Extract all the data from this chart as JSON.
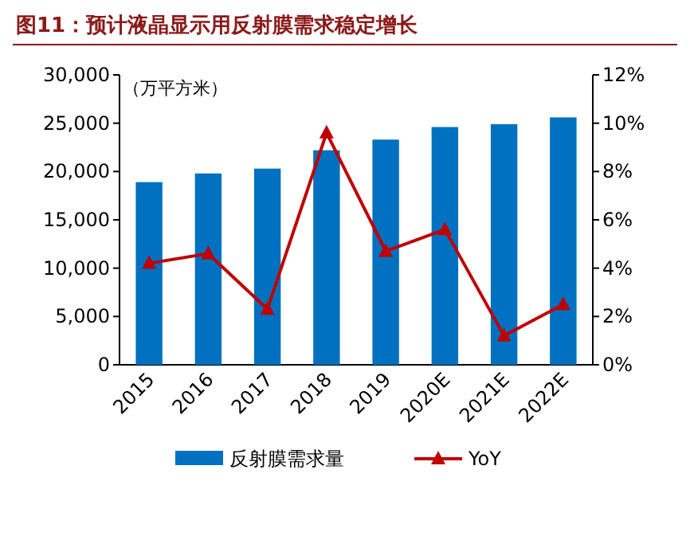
{
  "chart_data": {
    "type": "bar",
    "title": "图11：预计液晶显示用反射膜需求稳定增长",
    "ylabel": "（万平方米）",
    "categories": [
      "2015",
      "2016",
      "2017",
      "2018",
      "2019",
      "2020E",
      "2021E",
      "2022E"
    ],
    "series": [
      {
        "name": "反射膜需求量",
        "color": "#0070c0",
        "values": [
          18900,
          19800,
          20300,
          22200,
          23300,
          24600,
          24900,
          25600
        ]
      },
      {
        "name": "YoY",
        "type": "line",
        "axis": "y2",
        "color": "#c00000",
        "marker": "triangle",
        "values": [
          4.2,
          4.6,
          2.3,
          9.6,
          4.7,
          5.6,
          1.2,
          2.5
        ]
      }
    ],
    "ylim": [
      0,
      30000
    ],
    "yticks": [
      {
        "value": 0,
        "label": "0"
      },
      {
        "value": 5000,
        "label": "5,000"
      },
      {
        "value": 10000,
        "label": "10,000"
      },
      {
        "value": 15000,
        "label": "15,000"
      },
      {
        "value": 20000,
        "label": "20,000"
      },
      {
        "value": 25000,
        "label": "25,000"
      },
      {
        "value": 30000,
        "label": "30,000"
      }
    ],
    "y2lim": [
      0,
      12
    ],
    "y2ticks": [
      {
        "value": 0,
        "label": "0%"
      },
      {
        "value": 2,
        "label": "2%"
      },
      {
        "value": 4,
        "label": "4%"
      },
      {
        "value": 6,
        "label": "6%"
      },
      {
        "value": 8,
        "label": "8%"
      },
      {
        "value": 10,
        "label": "10%"
      },
      {
        "value": 12,
        "label": "12%"
      }
    ],
    "legend": "bottom",
    "grid": false
  }
}
